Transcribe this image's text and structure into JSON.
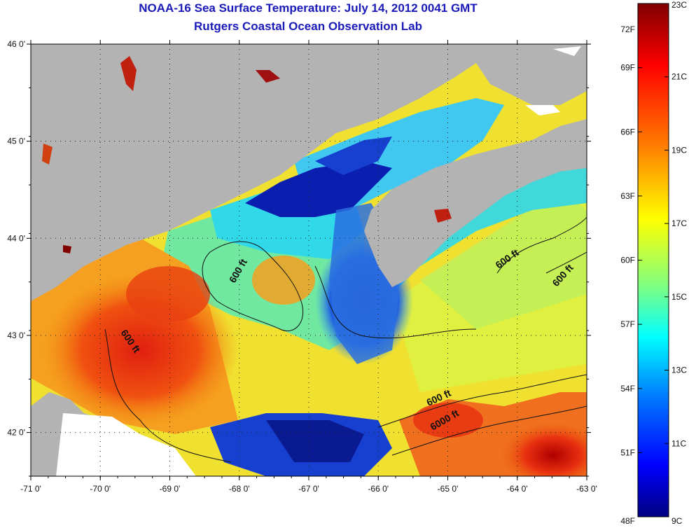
{
  "title": "NOAA-16 Sea Surface Temperature:  July 14, 2012 0041 GMT",
  "subtitle": "Rutgers Coastal Ocean Observation Lab",
  "map": {
    "lat_ticks": [
      {
        "label": "46 0'",
        "value": 46
      },
      {
        "label": "45 0'",
        "value": 45
      },
      {
        "label": "44 0'",
        "value": 44
      },
      {
        "label": "43 0'",
        "value": 43
      },
      {
        "label": "42 0'",
        "value": 42
      }
    ],
    "lon_ticks": [
      {
        "label": "-71 0'",
        "value": -71
      },
      {
        "label": "-70 0'",
        "value": -70
      },
      {
        "label": "-69 0'",
        "value": -69
      },
      {
        "label": "-68 0'",
        "value": -68
      },
      {
        "label": "-67 0'",
        "value": -67
      },
      {
        "label": "-66 0'",
        "value": -66
      },
      {
        "label": "-65 0'",
        "value": -65
      },
      {
        "label": "-64 0'",
        "value": -64
      },
      {
        "label": "-63 0'",
        "value": -63
      }
    ],
    "lat_range": [
      41.55,
      46.0
    ],
    "lon_range": [
      -71.0,
      -63.0
    ],
    "contour_labels": [
      "600 ft",
      "600 ft",
      "600 ft",
      "600 ft",
      "600 ft",
      "6000 ft"
    ],
    "colors": {
      "land": "#b3b3b3",
      "missing": "#ffffff"
    }
  },
  "colorbar": {
    "fahrenheit_labels": [
      "72F",
      "69F",
      "66F",
      "63F",
      "60F",
      "57F",
      "54F",
      "51F",
      "48F"
    ],
    "celsius_labels": [
      "23C",
      "21C",
      "19C",
      "17C",
      "15C",
      "13C",
      "11C",
      "9C"
    ],
    "gradient": [
      "#800000",
      "#ff0000",
      "#ff8000",
      "#ffff00",
      "#80ff80",
      "#00ffff",
      "#0080ff",
      "#0000ff",
      "#000080"
    ]
  }
}
